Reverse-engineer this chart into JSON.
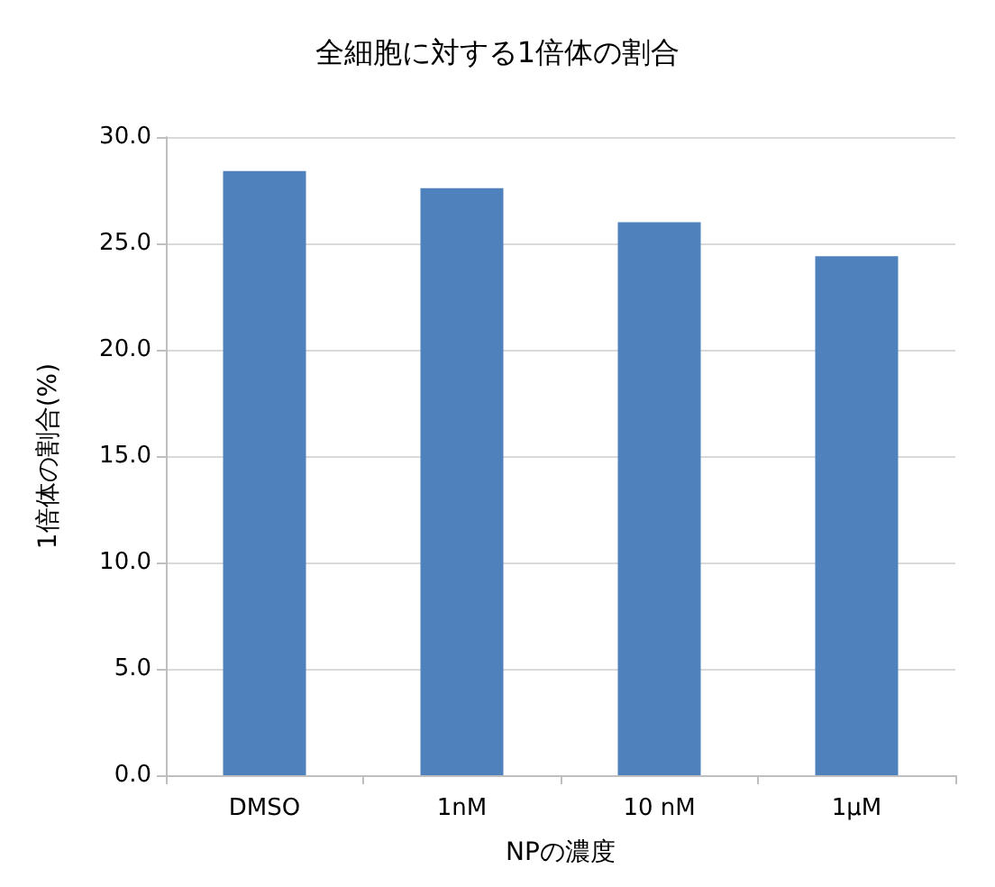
{
  "chart_data": {
    "type": "bar",
    "title": "全細胞に対する1倍体の割合",
    "xlabel": "NPの濃度",
    "ylabel": "1倍体の割合(%)",
    "categories": [
      "DMSO",
      "1nM",
      "10 nM",
      "1μM"
    ],
    "series": [
      {
        "color": "#4f81bd",
        "values": [
          28.4,
          27.6,
          26.0,
          24.4
        ]
      }
    ],
    "ylim": [
      0,
      30
    ],
    "yticks": [
      {
        "value": 0,
        "label": "0.0"
      },
      {
        "value": 5,
        "label": "5.0"
      },
      {
        "value": 10,
        "label": "10.0"
      },
      {
        "value": 15,
        "label": "15.0"
      },
      {
        "value": 20,
        "label": "20.0"
      },
      {
        "value": 25,
        "label": "25.0"
      },
      {
        "value": 30,
        "label": "30.0"
      }
    ],
    "grid": "y"
  }
}
